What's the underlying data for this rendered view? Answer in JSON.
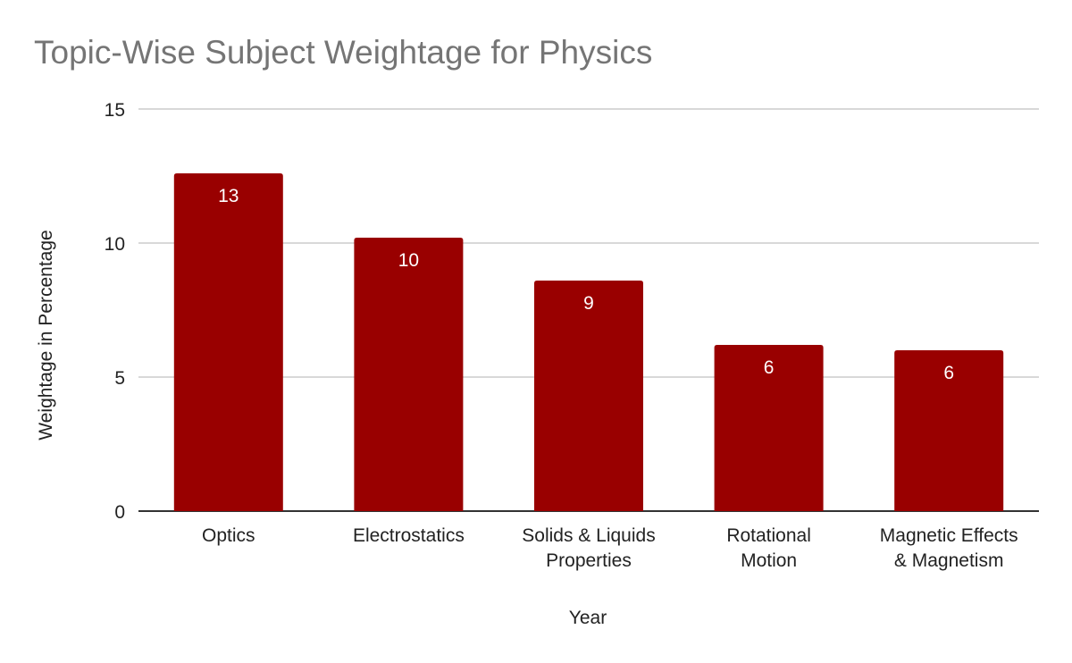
{
  "chart_data": {
    "type": "bar",
    "title": "Topic-Wise Subject Weightage for Physics",
    "xlabel": "Year",
    "ylabel": "Weightage in Percentage",
    "categories": [
      [
        "Optics"
      ],
      [
        "Electrostatics"
      ],
      [
        "Solids & Liquids",
        "Properties"
      ],
      [
        "Rotational",
        "Motion"
      ],
      [
        "Magnetic Effects",
        "& Magnetism"
      ]
    ],
    "values": [
      12.6,
      10.2,
      8.6,
      6.2,
      6.0
    ],
    "data_labels": [
      "13",
      "10",
      "9",
      "6",
      "6"
    ],
    "ylim": [
      0,
      15
    ],
    "yticks": [
      0,
      5,
      10,
      15
    ],
    "grid": true,
    "legend": "none",
    "colors": {
      "bar": "#990000",
      "grid": "#cccccc",
      "axis": "#333333"
    }
  }
}
